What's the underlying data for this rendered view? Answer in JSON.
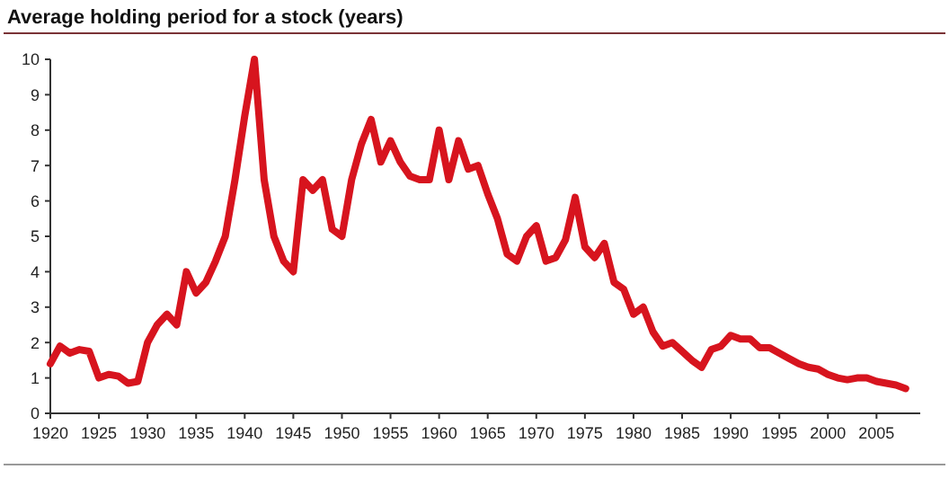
{
  "chart_data": {
    "type": "line",
    "title": "Average holding period for a stock (years)",
    "x": [
      1920,
      1921,
      1922,
      1923,
      1924,
      1925,
      1926,
      1927,
      1928,
      1929,
      1930,
      1931,
      1932,
      1933,
      1934,
      1935,
      1936,
      1937,
      1938,
      1939,
      1940,
      1941,
      1942,
      1943,
      1944,
      1945,
      1946,
      1947,
      1948,
      1949,
      1950,
      1951,
      1952,
      1953,
      1954,
      1955,
      1956,
      1957,
      1958,
      1959,
      1960,
      1961,
      1962,
      1963,
      1964,
      1965,
      1966,
      1967,
      1968,
      1969,
      1970,
      1971,
      1972,
      1973,
      1974,
      1975,
      1976,
      1977,
      1978,
      1979,
      1980,
      1981,
      1982,
      1983,
      1984,
      1985,
      1986,
      1987,
      1988,
      1989,
      1990,
      1991,
      1992,
      1993,
      1994,
      1995,
      1996,
      1997,
      1998,
      1999,
      2000,
      2001,
      2002,
      2003,
      2004,
      2005,
      2006,
      2007,
      2008
    ],
    "series": [
      {
        "color": "#d7141e",
        "values": [
          1.4,
          1.9,
          1.7,
          1.8,
          1.75,
          1.0,
          1.1,
          1.05,
          0.85,
          0.9,
          2.0,
          2.5,
          2.8,
          2.5,
          4.0,
          3.4,
          3.7,
          4.3,
          5.0,
          6.6,
          8.4,
          10.0,
          6.6,
          5.0,
          4.3,
          4.0,
          6.6,
          6.3,
          6.6,
          5.2,
          5.0,
          6.6,
          7.6,
          8.3,
          7.1,
          7.7,
          7.1,
          6.7,
          6.6,
          6.6,
          8.0,
          6.6,
          7.7,
          6.9,
          7.0,
          6.2,
          5.5,
          4.5,
          4.3,
          5.0,
          5.3,
          4.3,
          4.4,
          4.9,
          6.1,
          4.7,
          4.4,
          4.8,
          3.7,
          3.5,
          2.8,
          3.0,
          2.3,
          1.9,
          2.0,
          1.75,
          1.5,
          1.3,
          1.8,
          1.9,
          2.2,
          2.1,
          2.1,
          1.85,
          1.85,
          1.7,
          1.55,
          1.4,
          1.3,
          1.25,
          1.1,
          1.0,
          0.95,
          1.0,
          1.0,
          0.9,
          0.85,
          0.8,
          0.7
        ]
      }
    ],
    "xlim": [
      1920,
      2009.5
    ],
    "xticks": [
      1920,
      1925,
      1930,
      1935,
      1940,
      1945,
      1950,
      1955,
      1960,
      1965,
      1970,
      1975,
      1980,
      1985,
      1990,
      1995,
      2000,
      2005
    ],
    "ylim": [
      0,
      10
    ],
    "yticks": [
      0,
      1,
      2,
      3,
      4,
      5,
      6,
      7,
      8,
      9,
      10
    ],
    "grid": false,
    "marker": "none",
    "line_style": "solid"
  }
}
